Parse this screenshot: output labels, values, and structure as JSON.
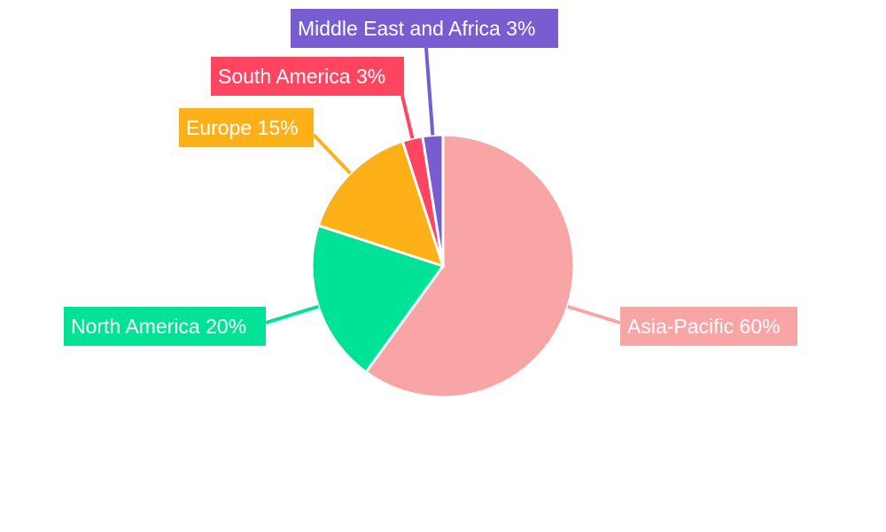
{
  "chart_data": {
    "type": "pie",
    "categories": [
      "Asia-Pacific",
      "North America",
      "Europe",
      "South America",
      "Middle East and Africa"
    ],
    "values": [
      60,
      20,
      15,
      2.5,
      2.5
    ],
    "labels": [
      "Asia-Pacific 60%",
      "North America 20%",
      "Europe 15%",
      "South America 3%",
      "Middle East and Africa 3%"
    ],
    "colors": [
      "#F9A4A5",
      "#00E396",
      "#FEB019",
      "#FF4560",
      "#775DD0"
    ],
    "start_angle": "top, clockwise",
    "legend": "none"
  }
}
